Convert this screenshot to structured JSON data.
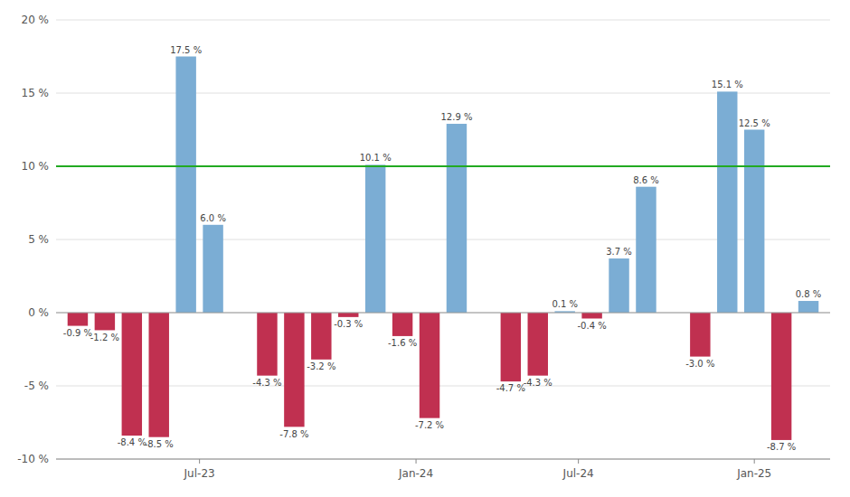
{
  "chart_data": {
    "type": "bar",
    "x": [
      0,
      1,
      2,
      3,
      4,
      5,
      7,
      8,
      9,
      10,
      11,
      12,
      13,
      14,
      16,
      17,
      18,
      19,
      20,
      21,
      23,
      24,
      25,
      26,
      27
    ],
    "values": [
      -0.9,
      -1.2,
      -8.4,
      -8.5,
      17.5,
      6.0,
      -4.3,
      -7.8,
      -3.2,
      -0.3,
      10.1,
      -1.6,
      -7.2,
      12.9,
      -4.7,
      -4.3,
      0.1,
      -0.4,
      3.7,
      8.6,
      -3.0,
      15.1,
      12.5,
      -8.7,
      0.8
    ],
    "value_labels": [
      "-0.9 %",
      "-1.2 %",
      "-8.4 %",
      "-8.5 %",
      "17.5 %",
      "6.0 %",
      "-4.3 %",
      "-7.8 %",
      "-3.2 %",
      "-0.3 %",
      "10.1 %",
      "-1.6 %",
      "-7.2 %",
      "12.9 %",
      "-4.7 %",
      "-4.3 %",
      "0.1 %",
      "-0.4 %",
      "3.7 %",
      "8.6 %",
      "-3.0 %",
      "15.1 %",
      "12.5 %",
      "-8.7 %",
      "0.8 %"
    ],
    "colors": [
      "#c03050",
      "#c03050",
      "#c03050",
      "#c03050",
      "#7badd4",
      "#7badd4",
      "#c03050",
      "#c03050",
      "#c03050",
      "#c03050",
      "#7badd4",
      "#c03050",
      "#c03050",
      "#7badd4",
      "#c03050",
      "#c03050",
      "#7badd4",
      "#c03050",
      "#7badd4",
      "#7badd4",
      "#c03050",
      "#7badd4",
      "#7badd4",
      "#c03050",
      "#7badd4"
    ],
    "data_labels": true,
    "xlim": [
      -0.8,
      27.8
    ],
    "xticks": [
      {
        "value": 4.5,
        "label": "Jul-23"
      },
      {
        "value": 12.5,
        "label": "Jan-24"
      },
      {
        "value": 18.5,
        "label": "Jul-24"
      },
      {
        "value": 25.0,
        "label": "Jan-25"
      }
    ],
    "ylim": [
      -10,
      20
    ],
    "yticks": [
      {
        "value": -10,
        "label": "-10 %"
      },
      {
        "value": -5,
        "label": "-5 %"
      },
      {
        "value": 0,
        "label": "0 %"
      },
      {
        "value": 5,
        "label": "5 %"
      },
      {
        "value": 10,
        "label": "10 %"
      },
      {
        "value": 15,
        "label": "15 %"
      },
      {
        "value": 20,
        "label": "20 %"
      }
    ],
    "grid": true,
    "reference_line": {
      "value": 10,
      "color": "#22aa22"
    }
  }
}
